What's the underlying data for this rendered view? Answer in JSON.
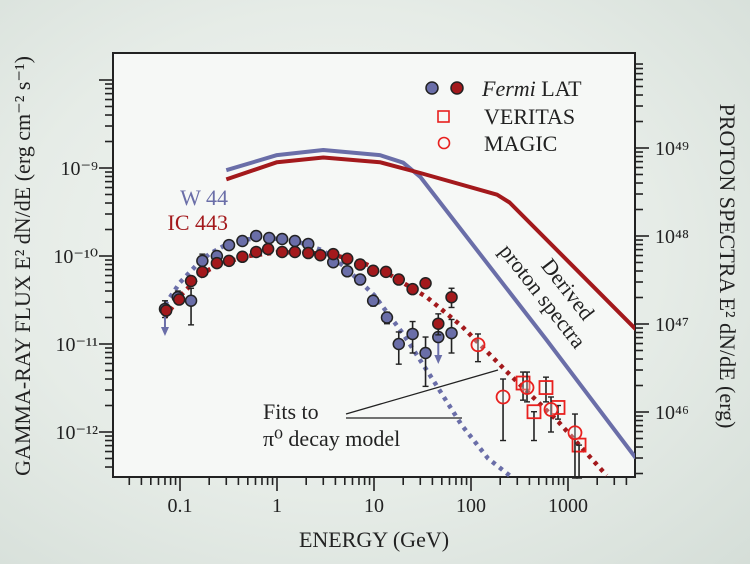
{
  "chart_data": {
    "type": "scatter",
    "xlabel": "ENERGY (GeV)",
    "ylabel_left": "GAMMA-RAY FLUX E² dN/dE (erg cm⁻² s⁻¹)",
    "ylabel_right": "PROTON SPECTRA E² dN/dE (erg)",
    "x_scale": "log",
    "y_scale": "log",
    "xlim": [
      0.02,
      5000
    ],
    "ylim_left": [
      2e-08,
      3.1e-13
    ],
    "ylim_right": [
      1.2e+50,
      1.8e+45
    ],
    "grid": false,
    "legend_position": "top-right",
    "x_ticks": [
      "0.1",
      "1",
      "10",
      "100",
      "1000"
    ],
    "x_tick_values": [
      0.1,
      1,
      10,
      100,
      1000
    ],
    "y_left_ticks": [
      "10⁻⁹",
      "10⁻¹⁰",
      "10⁻¹¹",
      "10⁻¹²"
    ],
    "y_left_tick_values": [
      1e-09,
      1e-10,
      1e-11,
      1e-12
    ],
    "y_right_ticks": [
      "10⁴⁹",
      "10⁴⁸",
      "10⁴⁷",
      "10⁴⁶"
    ],
    "y_right_tick_values": [
      1e+49,
      1e+48,
      1e+47,
      1e+46
    ],
    "colors": {
      "w44": "#6a6ea8",
      "ic443": "#a3191c",
      "tev": "#e8201e",
      "axis": "#222222"
    },
    "legend": {
      "fermi_italic": "Fermi",
      "fermi_rest": "LAT",
      "veritas": "VERITAS",
      "magic": "MAGIC"
    },
    "source_labels": {
      "w44": "W 44",
      "ic443": "IC 443"
    },
    "annotations": {
      "fits_line1": "Fits to",
      "fits_line2": "π⁰ decay model",
      "proton_line1": "Derived",
      "proton_line2": "proton spectra"
    },
    "series": [
      {
        "name": "W 44",
        "instrument": "Fermi LAT",
        "axis": "left",
        "marker": "filled-circle",
        "color": "#6a6ea8",
        "x": [
          0.07,
          0.095,
          0.13,
          0.17,
          0.24,
          0.32,
          0.44,
          0.61,
          0.83,
          1.13,
          1.53,
          2.1,
          3.8,
          5.3,
          7.2,
          9.8,
          13.6,
          18,
          25,
          34,
          46,
          63
        ],
        "y": [
          2.5e-11,
          3.4e-11,
          3.1e-11,
          8.8e-11,
          1e-10,
          1.33e-10,
          1.48e-10,
          1.69e-10,
          1.6e-10,
          1.56e-10,
          1.48e-10,
          1.37e-10,
          8.5e-11,
          6.7e-11,
          5.4e-11,
          3.1e-11,
          2e-11,
          1e-11,
          1.3e-11,
          7.9e-12,
          1.2e-11,
          1.33e-11
        ],
        "y_err_low": [
          2e-11,
          2.9e-11,
          1.65e-11,
          7.4e-11,
          null,
          null,
          null,
          null,
          null,
          null,
          null,
          null,
          null,
          null,
          null,
          2.7e-11,
          1.7e-11,
          5.9e-12,
          7.9e-12,
          3.3e-12,
          null,
          7.9e-12
        ],
        "y_err_high": [
          3.1e-11,
          4e-11,
          4.3e-11,
          1.05e-10,
          null,
          null,
          null,
          null,
          null,
          null,
          null,
          null,
          null,
          null,
          null,
          3.5e-11,
          2.3e-11,
          1.37e-11,
          1.8e-11,
          1.2e-11,
          null,
          1.9e-11
        ],
        "upper_limit": [
          true,
          false,
          false,
          false,
          false,
          false,
          false,
          false,
          false,
          false,
          false,
          false,
          false,
          false,
          false,
          false,
          false,
          false,
          false,
          false,
          true,
          false
        ]
      },
      {
        "name": "IC 443",
        "instrument": "Fermi LAT",
        "axis": "left",
        "marker": "filled-circle",
        "color": "#a3191c",
        "x": [
          0.072,
          0.098,
          0.13,
          0.17,
          0.24,
          0.32,
          0.44,
          0.61,
          0.81,
          1.13,
          1.53,
          2.1,
          2.8,
          3.8,
          5.3,
          7.2,
          9.8,
          13.3,
          18,
          25,
          34,
          46,
          63
        ],
        "y": [
          2.4e-11,
          3.2e-11,
          5.2e-11,
          6.6e-11,
          8.3e-11,
          8.8e-11,
          9.8e-11,
          1.11e-10,
          1.2e-10,
          1.11e-10,
          1.11e-10,
          1.08e-10,
          1.02e-10,
          1.05e-10,
          9.3e-11,
          8e-11,
          6.8e-11,
          6.6e-11,
          5.4e-11,
          4.2e-11,
          4.9e-11,
          1.7e-11,
          3.4e-11
        ],
        "y_err_low": [
          null,
          null,
          null,
          null,
          null,
          null,
          null,
          null,
          null,
          null,
          null,
          null,
          null,
          null,
          null,
          null,
          null,
          null,
          null,
          3.8e-11,
          4.4e-11,
          1.27e-11,
          2.6e-11
        ],
        "y_err_high": [
          null,
          null,
          null,
          null,
          null,
          null,
          null,
          null,
          null,
          null,
          null,
          null,
          null,
          null,
          null,
          null,
          null,
          null,
          null,
          4.7e-11,
          5.5e-11,
          2.2e-11,
          4.3e-11
        ]
      },
      {
        "name": "VERITAS",
        "axis": "left",
        "marker": "open-square",
        "color": "#e8201e",
        "x": [
          344,
          446,
          593,
          789,
          1300
        ],
        "y": [
          3.6e-12,
          1.7e-12,
          3.2e-12,
          1.9e-12,
          7.1e-13
        ],
        "y_err_low": [
          2.3e-12,
          8e-13,
          2.2e-12,
          1.4e-12,
          3e-13
        ],
        "y_err_high": [
          4.8e-12,
          1.7e-12,
          4.2e-12,
          2e-12,
          7.1e-13
        ]
      },
      {
        "name": "MAGIC",
        "axis": "left",
        "marker": "open-circle",
        "color": "#e8201e",
        "x": [
          118,
          214,
          378,
          668,
          1180
        ],
        "y": [
          9.8e-12,
          2.5e-12,
          3.2e-12,
          1.8e-12,
          9.8e-13
        ],
        "y_err_low": [
          6.3e-12,
          8e-13,
          2.2e-12,
          1e-12,
          3e-13
        ],
        "y_err_high": [
          1.3e-11,
          4e-12,
          4.8e-12,
          2.5e-12,
          1.6e-12
        ]
      },
      {
        "name": "W 44 π⁰ fit",
        "axis": "left",
        "style": "dotted",
        "color": "#6a6ea8",
        "x": [
          0.07,
          0.1,
          0.15,
          0.2,
          0.3,
          0.5,
          0.8,
          1.5,
          3,
          5,
          10,
          20,
          40,
          80,
          150,
          250
        ],
        "y": [
          2.8e-11,
          5e-11,
          8e-11,
          1.05e-10,
          1.35e-10,
          1.55e-10,
          1.6e-10,
          1.5e-10,
          1.15e-10,
          7.5e-11,
          3.6e-11,
          1.3e-11,
          4e-12,
          1.2e-12,
          5e-13,
          3.2e-13
        ]
      },
      {
        "name": "IC 443 π⁰ fit",
        "axis": "left",
        "style": "dotted",
        "color": "#a3191c",
        "x": [
          0.07,
          0.1,
          0.15,
          0.2,
          0.3,
          0.5,
          1,
          2,
          4,
          8,
          15,
          35,
          80,
          250,
          800,
          2500
        ],
        "y": [
          2e-11,
          3.5e-11,
          5.5e-11,
          7e-11,
          8.5e-11,
          1e-10,
          1.1e-10,
          1.1e-10,
          1.02e-10,
          8.2e-11,
          6e-11,
          3.4e-11,
          1.6e-11,
          4.5e-12,
          1.3e-12,
          3.2e-13
        ]
      },
      {
        "name": "W 44 proton spectrum",
        "axis": "right",
        "style": "solid",
        "color": "#6a6ea8",
        "x": [
          0.3,
          1,
          3,
          11.5,
          20,
          30,
          600,
          5000
        ],
        "y": [
          5.6e+48,
          8.3e+48,
          9.5e+48,
          8.3e+48,
          6.8e+48,
          4.7e+48,
          6.6e+46,
          3e+45
        ]
      },
      {
        "name": "IC 443 proton spectrum",
        "axis": "right",
        "style": "solid",
        "color": "#a3191c",
        "x": [
          0.3,
          1,
          3,
          11.5,
          30,
          186,
          250,
          5000
        ],
        "y": [
          4.4e+48,
          6.9e+48,
          7.8e+48,
          6.9e+48,
          5.2e+48,
          2.95e+48,
          2.4e+48,
          8.7e+46
        ]
      }
    ]
  }
}
